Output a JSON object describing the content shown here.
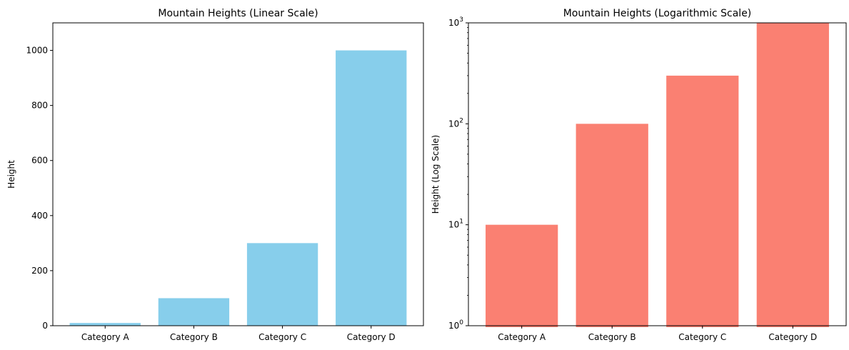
{
  "chart_data": [
    {
      "type": "bar",
      "title": "Mountain Heights (Linear Scale)",
      "xlabel": "",
      "ylabel": "Height",
      "yscale": "linear",
      "ylim": [
        0,
        1100
      ],
      "yticks": [
        0,
        200,
        400,
        600,
        800,
        1000
      ],
      "ytick_labels": [
        "0",
        "200",
        "400",
        "600",
        "800",
        "1000"
      ],
      "categories": [
        "Category A",
        "Category B",
        "Category C",
        "Category D"
      ],
      "values": [
        10,
        100,
        300,
        1000
      ],
      "color": "#87ceeb",
      "grid": false
    },
    {
      "type": "bar",
      "title": "Mountain Heights (Logarithmic Scale)",
      "xlabel": "",
      "ylabel": "Height (Log Scale)",
      "yscale": "log",
      "ylim": [
        1,
        1000
      ],
      "yticks": [
        1,
        10,
        100,
        1000
      ],
      "ytick_labels": [
        {
          "base": "10",
          "exp": "0"
        },
        {
          "base": "10",
          "exp": "1"
        },
        {
          "base": "10",
          "exp": "2"
        },
        {
          "base": "10",
          "exp": "3"
        }
      ],
      "categories": [
        "Category A",
        "Category B",
        "Category C",
        "Category D"
      ],
      "values": [
        10,
        100,
        300,
        1000
      ],
      "color": "#fa8072",
      "grid": false
    }
  ]
}
